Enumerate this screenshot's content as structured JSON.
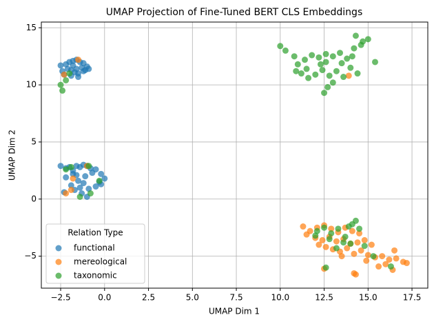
{
  "chart_data": {
    "type": "scatter",
    "title": "UMAP Projection of Fine-Tuned BERT CLS Embeddings",
    "x_label": "UMAP Dim 1",
    "y_label": "UMAP Dim 2",
    "legend_title": "Relation Type",
    "legend_position": "lower left",
    "grid": true,
    "xlim": [
      -3.6,
      18.4
    ],
    "ylim": [
      -7.8,
      15.5
    ],
    "xticks": [
      {
        "value": -2.5,
        "label": "−2.5"
      },
      {
        "value": 0,
        "label": "0.0"
      },
      {
        "value": 2.5,
        "label": "2.5"
      },
      {
        "value": 5,
        "label": "5.0"
      },
      {
        "value": 7.5,
        "label": "7.5"
      },
      {
        "value": 10,
        "label": "10.0"
      },
      {
        "value": 12.5,
        "label": "12.5"
      },
      {
        "value": 15,
        "label": "15.0"
      },
      {
        "value": 17.5,
        "label": "17.5"
      }
    ],
    "yticks": [
      {
        "value": -5,
        "label": "−5"
      },
      0,
      5,
      10,
      15
    ],
    "series": [
      {
        "name": "functional",
        "color": "#1f77b4",
        "x": [
          -2.5,
          -2.2,
          -2.0,
          -1.8,
          -1.6,
          -1.4,
          -1.2,
          -1.0,
          -2.4,
          -2.1,
          -1.9,
          -1.7,
          -1.5,
          -1.3,
          -1.1,
          -2.3,
          -1.9,
          -1.5,
          -1.2,
          -1.8,
          -1.6,
          -0.9,
          -2.5,
          -2.2,
          -2.0,
          -1.8,
          -1.6,
          -1.4,
          -1.2,
          -1.0,
          -0.8,
          -0.5,
          -0.2,
          0.0,
          -2.3,
          -1.9,
          -1.5,
          -1.1,
          -0.7,
          -0.3,
          -1.7,
          -1.3,
          -0.9,
          -0.5,
          -1.6,
          -1.2,
          -1.0,
          -2.2,
          -1.8,
          -1.4,
          -0.2
        ],
        "y": [
          11.7,
          11.8,
          12.0,
          12.1,
          12.2,
          12.0,
          11.9,
          11.6,
          11.2,
          11.4,
          11.3,
          11.1,
          11.0,
          11.5,
          11.3,
          10.9,
          10.8,
          10.7,
          11.2,
          11.7,
          11.4,
          11.4,
          2.9,
          2.7,
          2.8,
          2.5,
          2.9,
          2.8,
          3.0,
          2.9,
          2.7,
          2.6,
          2.2,
          1.8,
          0.6,
          1.2,
          1.6,
          2.0,
          2.3,
          1.5,
          0.8,
          0.5,
          0.9,
          1.1,
          2.1,
          1.4,
          0.2,
          1.9,
          2.2,
          1.0,
          1.3
        ]
      },
      {
        "name": "mereological",
        "color": "#ff7f0e",
        "x": [
          11.3,
          11.7,
          12.1,
          12.5,
          12.9,
          13.3,
          13.7,
          14.1,
          14.5,
          11.5,
          12.0,
          12.4,
          12.8,
          13.2,
          13.6,
          14.0,
          14.4,
          14.8,
          15.2,
          12.6,
          13.0,
          13.4,
          13.8,
          14.2,
          14.6,
          15.0,
          15.4,
          15.8,
          16.2,
          16.6,
          17.0,
          17.2,
          16.0,
          16.4,
          15.6,
          14.9,
          13.5,
          12.2,
          14.3,
          14.2,
          12.5,
          16.5,
          -1.5,
          -2.3,
          -1.8,
          -1.9,
          -2.2,
          -1.0,
          13.9
        ],
        "y": [
          -2.4,
          -2.8,
          -2.5,
          -2.3,
          -2.6,
          -2.9,
          -2.5,
          -2.8,
          -3.0,
          -3.1,
          -3.4,
          -3.6,
          -3.3,
          -3.7,
          -3.5,
          -3.9,
          -3.8,
          -3.6,
          -4.0,
          -4.2,
          -4.4,
          -4.6,
          -4.3,
          -4.8,
          -4.5,
          -4.9,
          -5.1,
          -5.0,
          -5.3,
          -5.2,
          -5.5,
          -5.6,
          -5.7,
          -6.2,
          -5.9,
          -5.4,
          -5.0,
          -4.0,
          -6.6,
          -6.5,
          -6.1,
          -4.5,
          12.2,
          10.9,
          1.8,
          0.8,
          0.5,
          2.9,
          10.8
        ]
      },
      {
        "name": "taxonomic",
        "color": "#2ca02c",
        "x": [
          10.0,
          10.3,
          10.8,
          11.0,
          11.4,
          11.8,
          12.2,
          12.6,
          13.0,
          13.4,
          13.8,
          14.2,
          14.6,
          15.0,
          15.4,
          11.2,
          11.6,
          12.0,
          12.4,
          12.8,
          13.2,
          13.6,
          14.0,
          14.4,
          12.5,
          12.7,
          13.0,
          14.3,
          14.7,
          11.5,
          12.3,
          13.5,
          14.1,
          10.9,
          12.6,
          -2.4,
          -2.5,
          -2.2,
          -2.0,
          -1.9,
          -0.9,
          -0.3,
          -2.2,
          -1.4,
          -0.8,
          12.1,
          12.5,
          12.9,
          13.3,
          13.7,
          14.1,
          14.3,
          14.5,
          12.0,
          12.8,
          13.6,
          13.2,
          14.0,
          14.8,
          15.3,
          16.3,
          12.6,
          13.9
        ],
        "y": [
          13.4,
          13.0,
          12.5,
          11.8,
          12.2,
          12.6,
          12.4,
          12.0,
          12.5,
          12.8,
          12.3,
          13.2,
          13.5,
          14.0,
          12.0,
          11.0,
          10.6,
          10.9,
          11.3,
          10.8,
          11.2,
          10.7,
          11.5,
          11.0,
          9.3,
          9.8,
          10.2,
          14.3,
          13.8,
          11.4,
          11.8,
          11.9,
          12.5,
          11.2,
          12.7,
          9.5,
          10.0,
          10.4,
          11.0,
          2.8,
          2.9,
          1.6,
          2.6,
          0.2,
          0.5,
          -2.8,
          -2.5,
          -3.0,
          -2.6,
          -3.3,
          -2.2,
          -1.9,
          -2.6,
          -3.2,
          -3.5,
          -3.8,
          -4.3,
          -3.9,
          -4.1,
          -5.0,
          -5.9,
          -6.0,
          -2.4
        ]
      }
    ]
  }
}
